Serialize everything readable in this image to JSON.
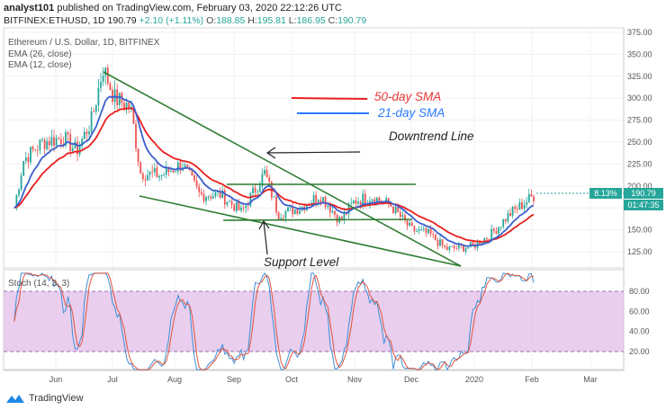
{
  "header": {
    "publisher": "analyst101",
    "published_text": "published on TradingView.com, February 03, 2020 22:12:26 UTC",
    "symbol": "BITFINEX:ETHUSD, 1D",
    "last": "190.79",
    "change": "+2.10 (+1.11%)",
    "o_label": "O:",
    "o": "188.85",
    "h_label": "H:",
    "h": "195.81",
    "l_label": "L:",
    "l": "186.95",
    "c_label": "C:",
    "c": "190.79"
  },
  "legend": {
    "title": "Ethereum / U.S. Dollar, 1D, BITFINEX",
    "ema26": "EMA (26, close)",
    "ema12": "EMA (12, close)",
    "stoch": "Stoch (14, 3, 3)"
  },
  "annotations": {
    "sma50": "50-day SMA",
    "sma21": "21-day SMA",
    "downtrend": "Downtrend Line",
    "support": "Support Level"
  },
  "price_tags": {
    "pct": "8.13%",
    "price": "190.79",
    "countdown": "01:47:35"
  },
  "footer": {
    "brand": "TradingView"
  },
  "colors": {
    "ema26": "#e91e1e",
    "ema12": "#3a5fcd",
    "trend_line": "#2e7d32",
    "stoch_k": "#3f8fd8",
    "stoch_d": "#e0543c",
    "stoch_band": "#e1bee7",
    "candle_up": "#26a69a",
    "candle_down": "#ef5350"
  },
  "chart_data": {
    "type": "candlestick",
    "x_ticks": [
      "Jun",
      "Jul",
      "Aug",
      "Sep",
      "Oct",
      "Nov",
      "Dec",
      "2020",
      "Feb",
      "Mar"
    ],
    "price_axis": {
      "ylim": [
        113,
        375
      ],
      "ticks": [
        375,
        350,
        325,
        300,
        275,
        250,
        225,
        200,
        175,
        150,
        125
      ]
    },
    "stoch_axis": {
      "ylim": [
        0,
        100
      ],
      "ticks": [
        80,
        60,
        40,
        20
      ],
      "band": [
        20,
        80
      ]
    },
    "close_path": [
      [
        "May 10",
        175
      ],
      [
        "May 15",
        230
      ],
      [
        "May 25",
        250
      ],
      [
        "Jun 5",
        255
      ],
      [
        "Jun 12",
        240
      ],
      [
        "Jun 20",
        275
      ],
      [
        "Jun 26",
        335
      ],
      [
        "Jul 2",
        300
      ],
      [
        "Jul 10",
        290
      ],
      [
        "Jul 15",
        215
      ],
      [
        "Jul 25",
        212
      ],
      [
        "Aug 5",
        225
      ],
      [
        "Aug 14",
        190
      ],
      [
        "Aug 25",
        190
      ],
      [
        "Sep 5",
        170
      ],
      [
        "Sep 17",
        215
      ],
      [
        "Sep 24",
        168
      ],
      [
        "Oct 5",
        175
      ],
      [
        "Oct 15",
        190
      ],
      [
        "Oct 25",
        160
      ],
      [
        "Nov 1",
        183
      ],
      [
        "Nov 10",
        188
      ],
      [
        "Nov 20",
        178
      ],
      [
        "Dec 1",
        150
      ],
      [
        "Dec 10",
        145
      ],
      [
        "Dec 18",
        128
      ],
      [
        "Dec 31",
        131
      ],
      [
        "Jan 10",
        145
      ],
      [
        "Jan 20",
        168
      ],
      [
        "Feb 3",
        190.79
      ]
    ]
  }
}
